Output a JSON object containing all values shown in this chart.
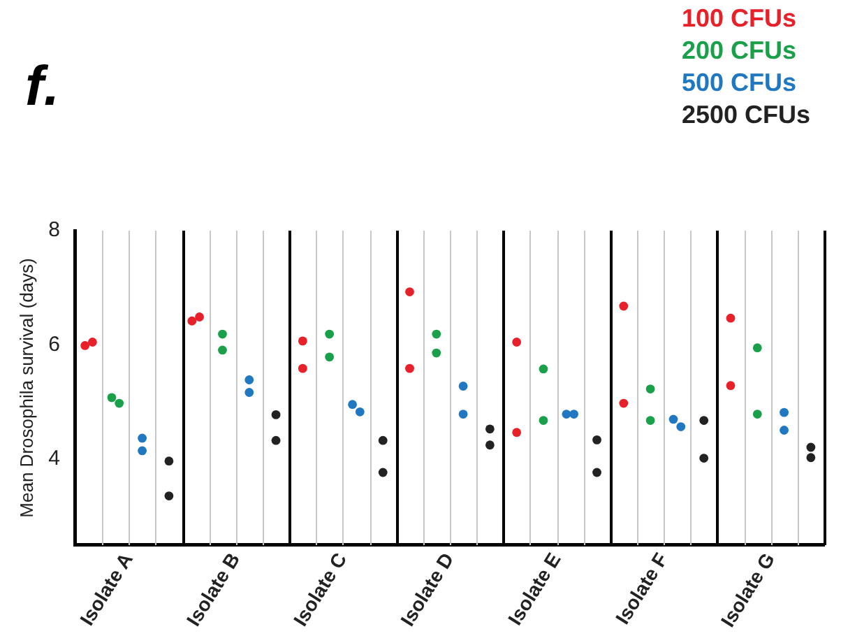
{
  "chart_data": {
    "type": "scatter",
    "title": "f.",
    "ylabel": "Mean Drosophila survival (days)",
    "categories": [
      "Isolate A",
      "Isolate B",
      "Isolate C",
      "Isolate D",
      "Isolate E",
      "Isolate F",
      "Isolate G"
    ],
    "series": [
      {
        "name": "100 CFUs",
        "color": "#e8202a",
        "x": [
          "Isolate A",
          "Isolate A",
          "Isolate B",
          "Isolate B",
          "Isolate C",
          "Isolate C",
          "Isolate D",
          "Isolate D",
          "Isolate E",
          "Isolate E",
          "Isolate F",
          "Isolate F",
          "Isolate G",
          "Isolate G"
        ],
        "values": [
          5.99,
          6.05,
          6.42,
          6.49,
          6.07,
          5.59,
          6.93,
          5.59,
          6.05,
          4.47,
          6.68,
          4.98,
          6.47,
          5.29
        ]
      },
      {
        "name": "200 CFUs",
        "color": "#1aa04a",
        "x": [
          "Isolate A",
          "Isolate A",
          "Isolate B",
          "Isolate B",
          "Isolate C",
          "Isolate C",
          "Isolate D",
          "Isolate D",
          "Isolate E",
          "Isolate E",
          "Isolate F",
          "Isolate F",
          "Isolate G",
          "Isolate G"
        ],
        "values": [
          5.08,
          4.98,
          6.19,
          5.91,
          6.19,
          5.79,
          6.19,
          5.86,
          5.58,
          4.68,
          5.23,
          4.68,
          5.95,
          4.79
        ]
      },
      {
        "name": "500 CFUs",
        "color": "#1f78c1",
        "x": [
          "Isolate A",
          "Isolate A",
          "Isolate B",
          "Isolate B",
          "Isolate C",
          "Isolate C",
          "Isolate D",
          "Isolate D",
          "Isolate E",
          "Isolate E",
          "Isolate F",
          "Isolate F",
          "Isolate G",
          "Isolate G"
        ],
        "values": [
          4.37,
          4.15,
          5.39,
          5.17,
          4.96,
          4.83,
          5.28,
          4.79,
          4.79,
          4.79,
          4.7,
          4.57,
          4.82,
          4.51
        ]
      },
      {
        "name": "2500 CFUs",
        "color": "#222222",
        "x": [
          "Isolate A",
          "Isolate A",
          "Isolate B",
          "Isolate B",
          "Isolate C",
          "Isolate C",
          "Isolate D",
          "Isolate D",
          "Isolate E",
          "Isolate E",
          "Isolate F",
          "Isolate F",
          "Isolate G",
          "Isolate G"
        ],
        "values": [
          3.97,
          3.36,
          4.78,
          4.33,
          4.33,
          3.77,
          4.53,
          4.25,
          4.34,
          3.77,
          4.68,
          4.02,
          4.21,
          4.03
        ]
      }
    ],
    "ylim": [
      2.5,
      8
    ],
    "yticks": [
      4,
      6,
      8
    ],
    "grid": "x",
    "legend": "top right",
    "marker": "circle"
  }
}
